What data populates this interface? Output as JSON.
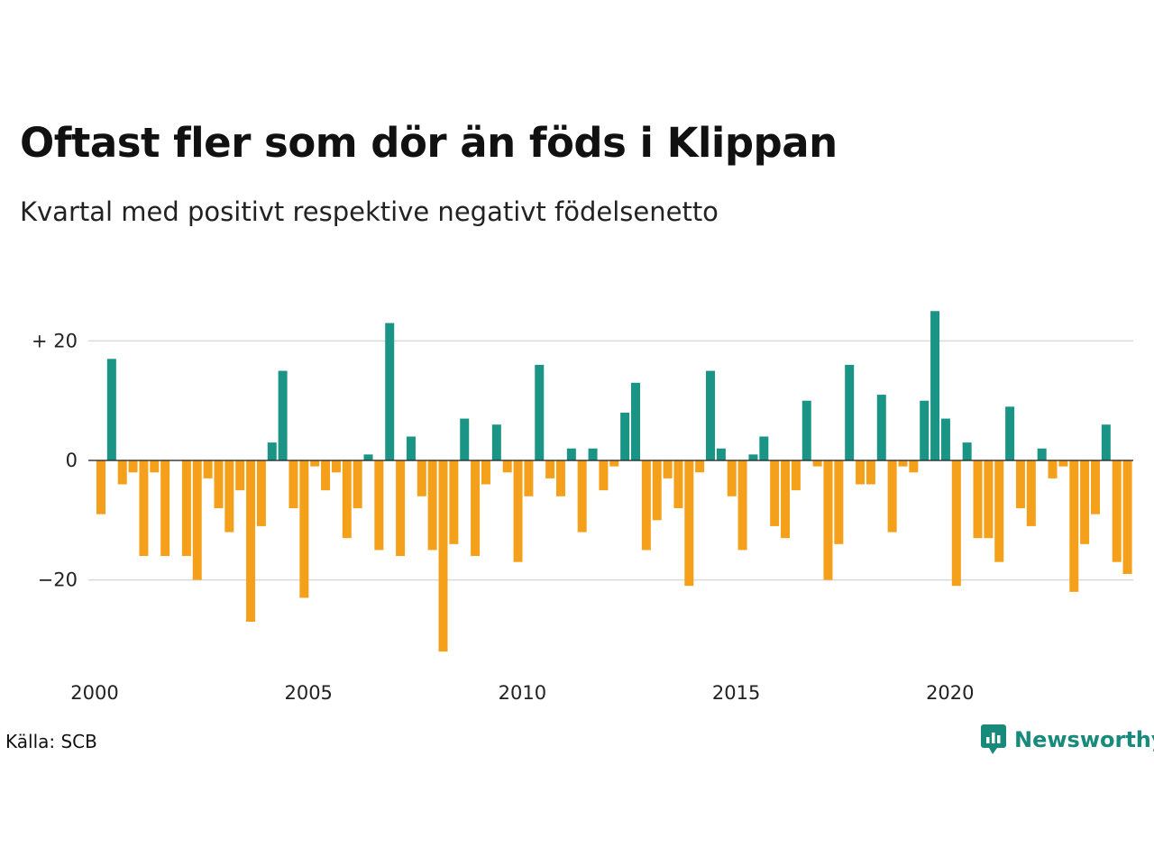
{
  "title": "Oftast fler som dör än föds i Klippan",
  "subtitle": "Kvartal med positivt respektive negativt födelsenetto",
  "source": "Källa: SCB",
  "logo_text": "Newsworthy",
  "colors": {
    "positive": "#1a9485",
    "negative": "#f5a01a",
    "grid": "#d9d9d9"
  },
  "chart_data": {
    "type": "bar",
    "x_start": "2000 Q1",
    "ylim": [
      -34,
      26
    ],
    "y_ticks": [
      {
        "value": 20,
        "label": "+ 20"
      },
      {
        "value": 0,
        "label": "0"
      },
      {
        "value": -20,
        "label": "−20"
      }
    ],
    "x_ticks": [
      "2000",
      "2005",
      "2010",
      "2015",
      "2020"
    ],
    "grid": true,
    "values": [
      -9,
      17,
      -4,
      -2,
      -16,
      -2,
      -16,
      0,
      -16,
      -20,
      -3,
      -8,
      -12,
      -5,
      -27,
      -11,
      3,
      15,
      -8,
      -23,
      -1,
      -5,
      -2,
      -13,
      -8,
      1,
      -15,
      23,
      -16,
      4,
      -6,
      -15,
      -32,
      -14,
      7,
      -16,
      -4,
      6,
      -2,
      -17,
      -6,
      16,
      -3,
      -6,
      2,
      -12,
      2,
      -5,
      -1,
      8,
      13,
      -15,
      -10,
      -3,
      -8,
      -21,
      -2,
      15,
      2,
      -6,
      -15,
      1,
      4,
      -11,
      -13,
      -5,
      10,
      -1,
      -20,
      -14,
      16,
      -4,
      -4,
      11,
      -12,
      -1,
      -2,
      10,
      25,
      7,
      -21,
      3,
      -13,
      -13,
      -17,
      9,
      -8,
      -11,
      2,
      -3,
      -1,
      -22,
      -14,
      -9,
      6,
      -17,
      -19
    ]
  }
}
